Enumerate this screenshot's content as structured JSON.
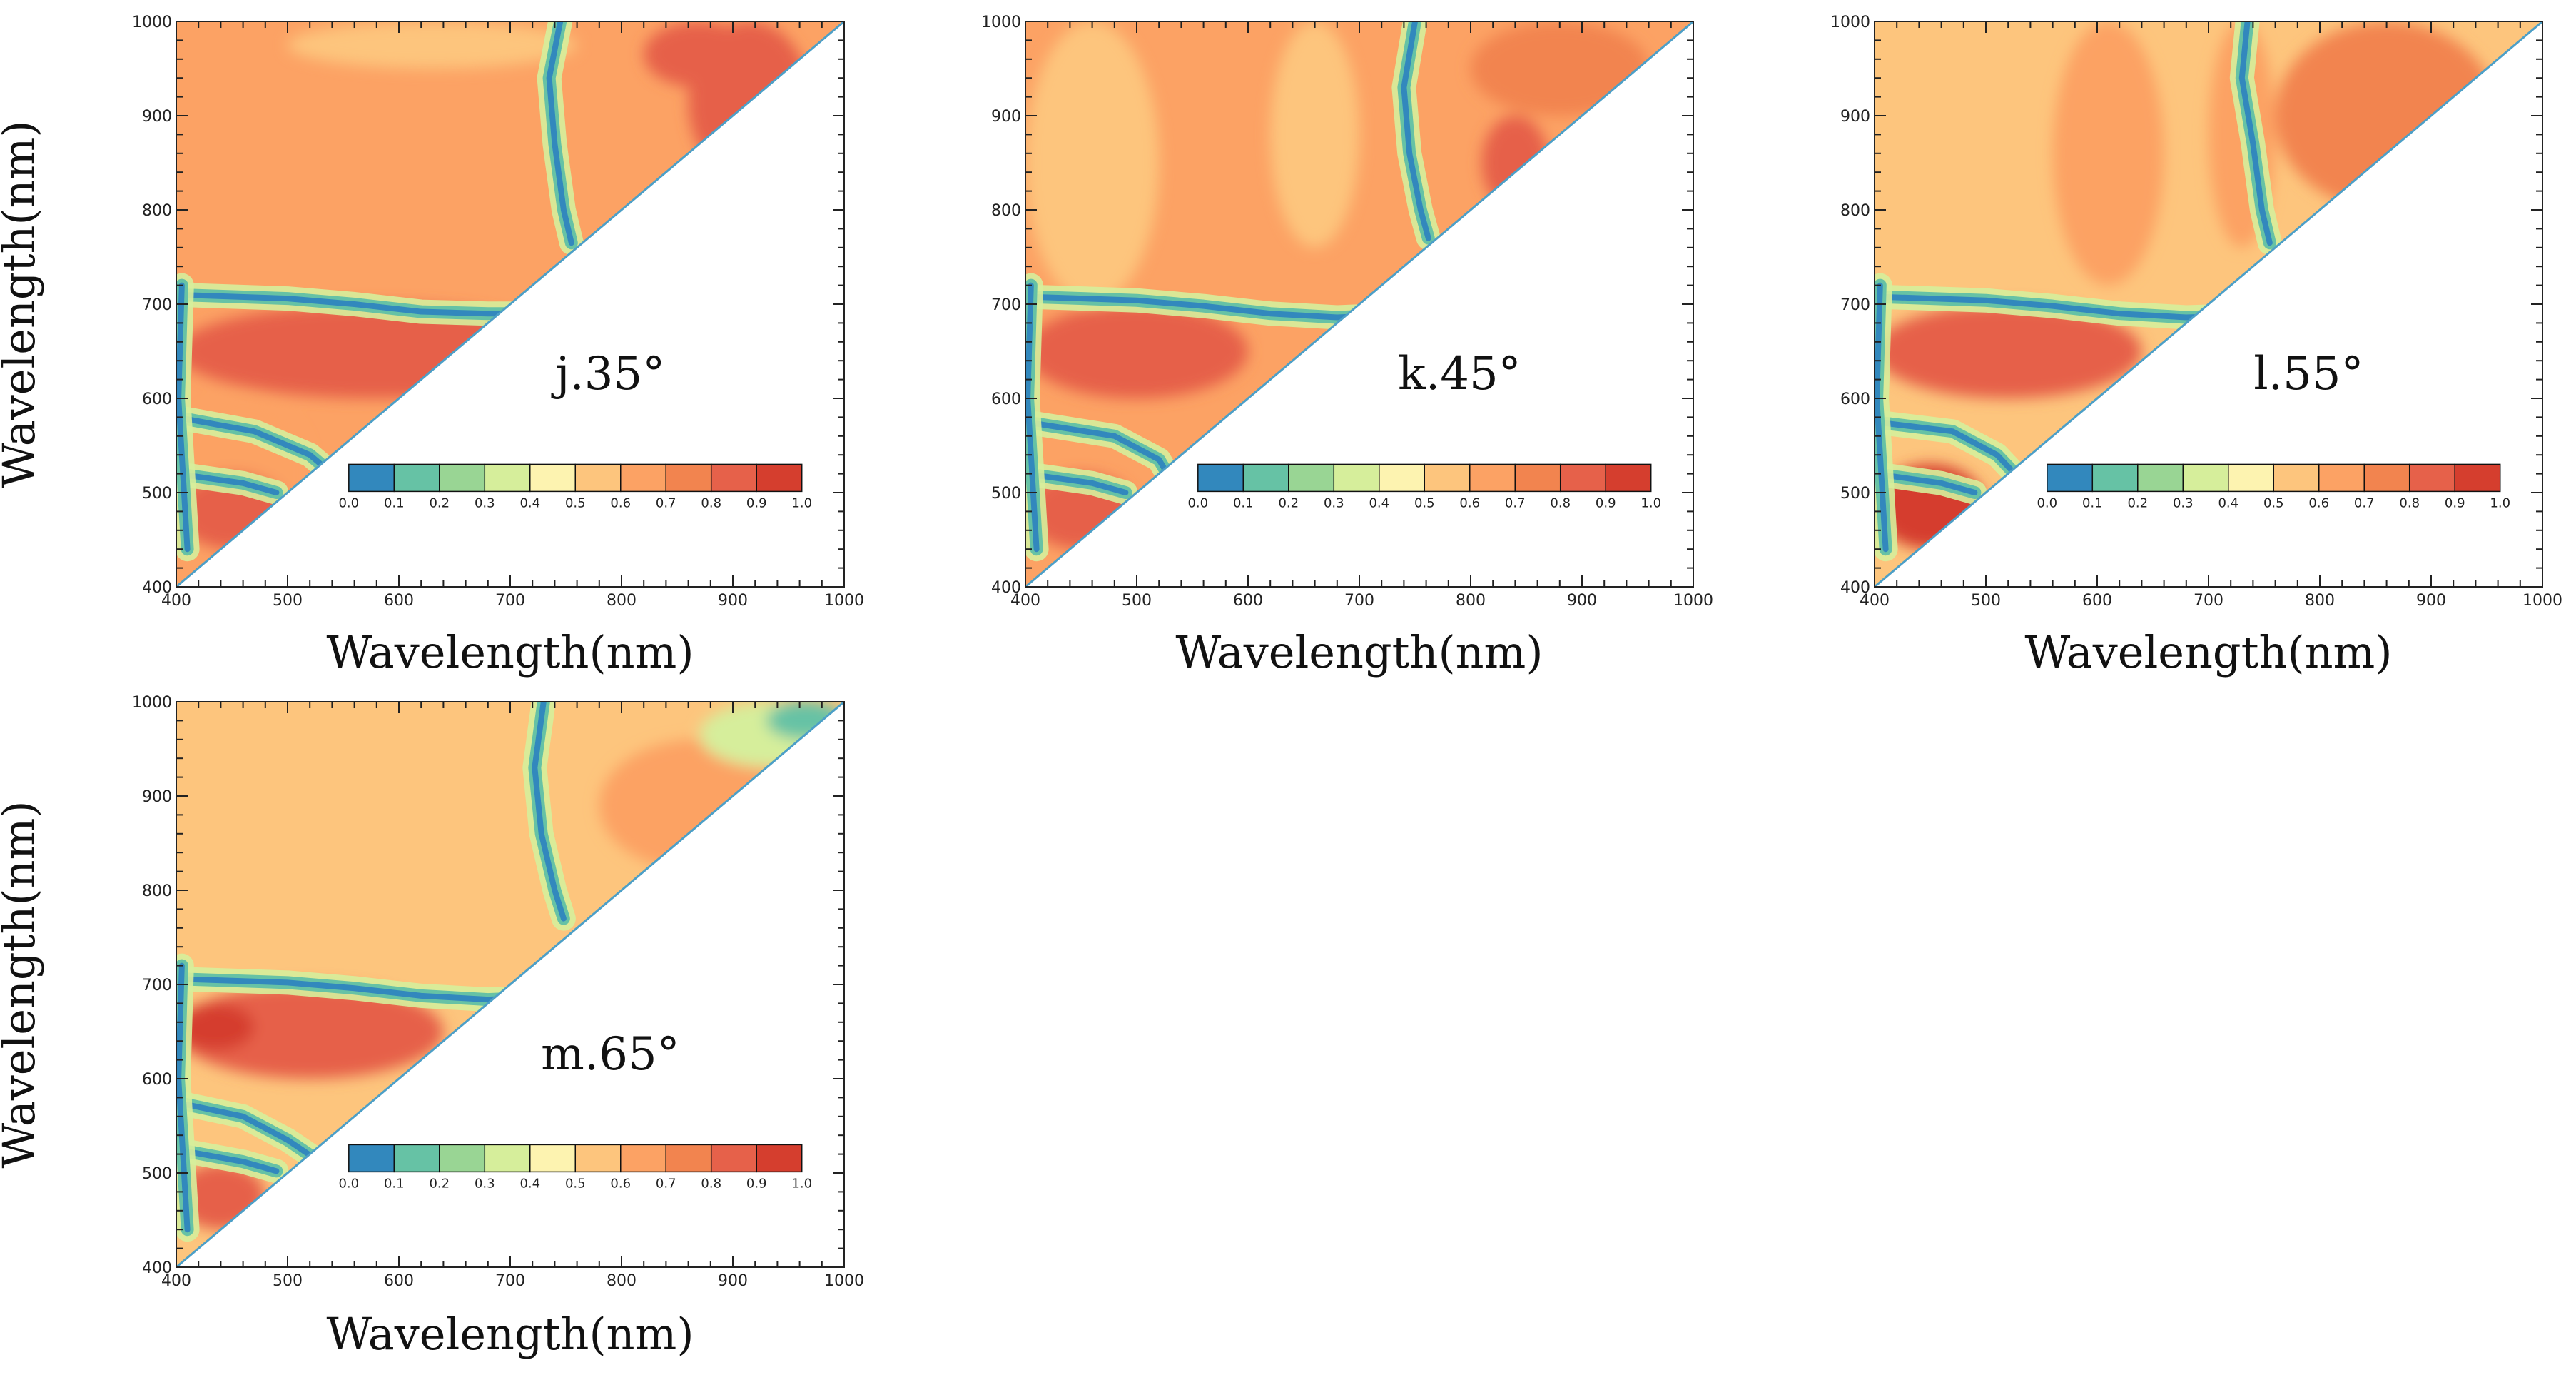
{
  "figure": {
    "background": "#ffffff",
    "colormap": {
      "name": "spectral-reversed",
      "bounds": [
        0.0,
        0.1,
        0.2,
        0.3,
        0.4,
        0.5,
        0.6,
        0.7,
        0.8,
        0.9,
        1.0
      ],
      "tick_labels": [
        "0.0",
        "0.1",
        "0.2",
        "0.3",
        "0.4",
        "0.5",
        "0.6",
        "0.7",
        "0.8",
        "0.9",
        "1.0"
      ],
      "colors": [
        "#3288bd",
        "#66c2a5",
        "#99d594",
        "#d6ee9b",
        "#fdf3b0",
        "#fdc57d",
        "#fca264",
        "#f2844f",
        "#e6614a",
        "#d53e2e"
      ]
    }
  },
  "chart_data": [
    {
      "type": "heatmap",
      "panel_label": "j.35°",
      "xlabel": "Wavelength(nm)",
      "ylabel": "Wavelength(nm)",
      "xlim": [
        400,
        1000
      ],
      "ylim": [
        400,
        1000
      ],
      "x_ticks": [
        "400",
        "500",
        "600",
        "700",
        "800",
        "900",
        "1000"
      ],
      "y_ticks": [
        "400",
        "500",
        "600",
        "700",
        "800",
        "900",
        "1000"
      ],
      "domain": "upper-left triangle (y > x)",
      "value_range": [
        0.0,
        1.0
      ],
      "background_value": 0.65,
      "low_ridge_value": 0.08,
      "regions": [
        {
          "x": [
            400,
            760
          ],
          "y": [
            600,
            700
          ],
          "value": 0.8
        },
        {
          "x": [
            400,
            520
          ],
          "y": [
            440,
            600
          ],
          "value": 0.6
        },
        {
          "x": [
            400,
            500
          ],
          "y": [
            440,
            520
          ],
          "value": 0.85
        },
        {
          "x": [
            860,
            970
          ],
          "y": [
            830,
            1000
          ],
          "value": 0.8
        },
        {
          "x": [
            820,
            920
          ],
          "y": [
            930,
            1000
          ],
          "value": 0.85
        },
        {
          "x": [
            500,
            760
          ],
          "y": [
            950,
            1000
          ],
          "value": 0.55
        }
      ],
      "ridges": [
        {
          "axis": "horizontal",
          "points": [
            [
              400,
              710
            ],
            [
              500,
              706
            ],
            [
              560,
              700
            ],
            [
              620,
              692
            ],
            [
              680,
              690
            ],
            [
              720,
              690
            ]
          ]
        },
        {
          "axis": "horizontal",
          "points": [
            [
              400,
              580
            ],
            [
              470,
              565
            ],
            [
              520,
              540
            ],
            [
              540,
              520
            ]
          ]
        },
        {
          "axis": "horizontal",
          "points": [
            [
              400,
              520
            ],
            [
              460,
              510
            ],
            [
              490,
              500
            ]
          ]
        },
        {
          "axis": "vertical",
          "points": [
            [
              745,
              1000
            ],
            [
              735,
              940
            ],
            [
              740,
              870
            ],
            [
              748,
              800
            ],
            [
              755,
              765
            ]
          ]
        },
        {
          "axis": "vertical",
          "points": [
            [
              405,
              720
            ],
            [
              402,
              600
            ],
            [
              410,
              440
            ]
          ]
        }
      ]
    },
    {
      "type": "heatmap",
      "panel_label": "k.45°",
      "xlabel": "Wavelength(nm)",
      "ylabel": "Wavelength(nm)",
      "xlim": [
        400,
        1000
      ],
      "ylim": [
        400,
        1000
      ],
      "x_ticks": [
        "400",
        "500",
        "600",
        "700",
        "800",
        "900",
        "1000"
      ],
      "y_ticks": [
        "400",
        "500",
        "600",
        "700",
        "800",
        "900",
        "1000"
      ],
      "domain": "upper-left triangle (y > x)",
      "value_range": [
        0.0,
        1.0
      ],
      "background_value": 0.65,
      "low_ridge_value": 0.08,
      "regions": [
        {
          "x": [
            400,
            520
          ],
          "y": [
            700,
            1000
          ],
          "value": 0.55
        },
        {
          "x": [
            620,
            700
          ],
          "y": [
            760,
            1000
          ],
          "value": 0.55
        },
        {
          "x": [
            400,
            600
          ],
          "y": [
            600,
            700
          ],
          "value": 0.85
        },
        {
          "x": [
            400,
            500
          ],
          "y": [
            440,
            520
          ],
          "value": 0.85
        },
        {
          "x": [
            810,
            870
          ],
          "y": [
            800,
            900
          ],
          "value": 0.85
        },
        {
          "x": [
            800,
            960
          ],
          "y": [
            900,
            1000
          ],
          "value": 0.75
        }
      ],
      "ridges": [
        {
          "axis": "horizontal",
          "points": [
            [
              400,
              708
            ],
            [
              500,
              704
            ],
            [
              560,
              698
            ],
            [
              620,
              690
            ],
            [
              680,
              686
            ],
            [
              720,
              688
            ]
          ]
        },
        {
          "axis": "horizontal",
          "points": [
            [
              400,
              575
            ],
            [
              480,
              560
            ],
            [
              520,
              535
            ],
            [
              530,
              515
            ]
          ]
        },
        {
          "axis": "horizontal",
          "points": [
            [
              400,
              520
            ],
            [
              460,
              510
            ],
            [
              490,
              500
            ]
          ]
        },
        {
          "axis": "vertical",
          "points": [
            [
              750,
              1000
            ],
            [
              740,
              930
            ],
            [
              745,
              860
            ],
            [
              755,
              800
            ],
            [
              762,
              770
            ]
          ]
        },
        {
          "axis": "vertical",
          "points": [
            [
              405,
              720
            ],
            [
              402,
              600
            ],
            [
              410,
              440
            ]
          ]
        }
      ]
    },
    {
      "type": "heatmap",
      "panel_label": "l.55°",
      "xlabel": "Wavelength(nm)",
      "ylabel": "Wavelength(nm)",
      "xlim": [
        400,
        1000
      ],
      "ylim": [
        400,
        1000
      ],
      "x_ticks": [
        "400",
        "500",
        "600",
        "700",
        "800",
        "900",
        "1000"
      ],
      "y_ticks": [
        "400",
        "500",
        "600",
        "700",
        "800",
        "900",
        "1000"
      ],
      "domain": "upper-left triangle (y > x)",
      "value_range": [
        0.0,
        1.0
      ],
      "background_value": 0.55,
      "low_ridge_value": 0.08,
      "regions": [
        {
          "x": [
            560,
            660
          ],
          "y": [
            720,
            1000
          ],
          "value": 0.65
        },
        {
          "x": [
            700,
            760
          ],
          "y": [
            760,
            1000
          ],
          "value": 0.65
        },
        {
          "x": [
            760,
            960
          ],
          "y": [
            800,
            1000
          ],
          "value": 0.7
        },
        {
          "x": [
            400,
            640
          ],
          "y": [
            600,
            700
          ],
          "value": 0.85
        },
        {
          "x": [
            400,
            500
          ],
          "y": [
            440,
            530
          ],
          "value": 0.9
        }
      ],
      "ridges": [
        {
          "axis": "horizontal",
          "points": [
            [
              400,
              708
            ],
            [
              500,
              704
            ],
            [
              560,
              698
            ],
            [
              620,
              690
            ],
            [
              680,
              686
            ],
            [
              730,
              688
            ]
          ]
        },
        {
          "axis": "horizontal",
          "points": [
            [
              400,
              575
            ],
            [
              470,
              565
            ],
            [
              510,
              540
            ],
            [
              530,
              515
            ]
          ]
        },
        {
          "axis": "horizontal",
          "points": [
            [
              400,
              520
            ],
            [
              460,
              510
            ],
            [
              490,
              500
            ]
          ]
        },
        {
          "axis": "vertical",
          "points": [
            [
              735,
              1000
            ],
            [
              730,
              940
            ],
            [
              740,
              870
            ],
            [
              748,
              800
            ],
            [
              755,
              765
            ]
          ]
        },
        {
          "axis": "vertical",
          "points": [
            [
              405,
              720
            ],
            [
              402,
              600
            ],
            [
              410,
              440
            ]
          ]
        }
      ]
    },
    {
      "type": "heatmap",
      "panel_label": "m.65°",
      "xlabel": "Wavelength(nm)",
      "ylabel": "Wavelength(nm)",
      "xlim": [
        400,
        1000
      ],
      "ylim": [
        400,
        1000
      ],
      "x_ticks": [
        "400",
        "500",
        "600",
        "700",
        "800",
        "900",
        "1000"
      ],
      "y_ticks": [
        "400",
        "500",
        "600",
        "700",
        "800",
        "900",
        "1000"
      ],
      "domain": "upper-left triangle (y > x)",
      "value_range": [
        0.0,
        1.0
      ],
      "background_value": 0.55,
      "low_ridge_value": 0.08,
      "regions": [
        {
          "x": [
            400,
            640
          ],
          "y": [
            600,
            700
          ],
          "value": 0.85
        },
        {
          "x": [
            400,
            470
          ],
          "y": [
            630,
            680
          ],
          "value": 0.92
        },
        {
          "x": [
            400,
            480
          ],
          "y": [
            440,
            510
          ],
          "value": 0.85
        },
        {
          "x": [
            780,
            960
          ],
          "y": [
            820,
            960
          ],
          "value": 0.65
        },
        {
          "x": [
            870,
            1000
          ],
          "y": [
            930,
            1000
          ],
          "value": 0.35
        },
        {
          "x": [
            930,
            1000
          ],
          "y": [
            960,
            1000
          ],
          "value": 0.1
        }
      ],
      "ridges": [
        {
          "axis": "horizontal",
          "points": [
            [
              400,
              706
            ],
            [
              500,
              702
            ],
            [
              560,
              696
            ],
            [
              620,
              688
            ],
            [
              680,
              684
            ],
            [
              720,
              686
            ]
          ]
        },
        {
          "axis": "horizontal",
          "points": [
            [
              400,
              575
            ],
            [
              460,
              560
            ],
            [
              500,
              535
            ],
            [
              525,
              515
            ]
          ]
        },
        {
          "axis": "horizontal",
          "points": [
            [
              400,
              525
            ],
            [
              460,
              512
            ],
            [
              490,
              502
            ]
          ]
        },
        {
          "axis": "vertical",
          "points": [
            [
              730,
              1000
            ],
            [
              722,
              930
            ],
            [
              728,
              860
            ],
            [
              740,
              800
            ],
            [
              748,
              770
            ]
          ]
        },
        {
          "axis": "vertical",
          "points": [
            [
              405,
              720
            ],
            [
              402,
              600
            ],
            [
              410,
              440
            ]
          ]
        }
      ]
    }
  ]
}
